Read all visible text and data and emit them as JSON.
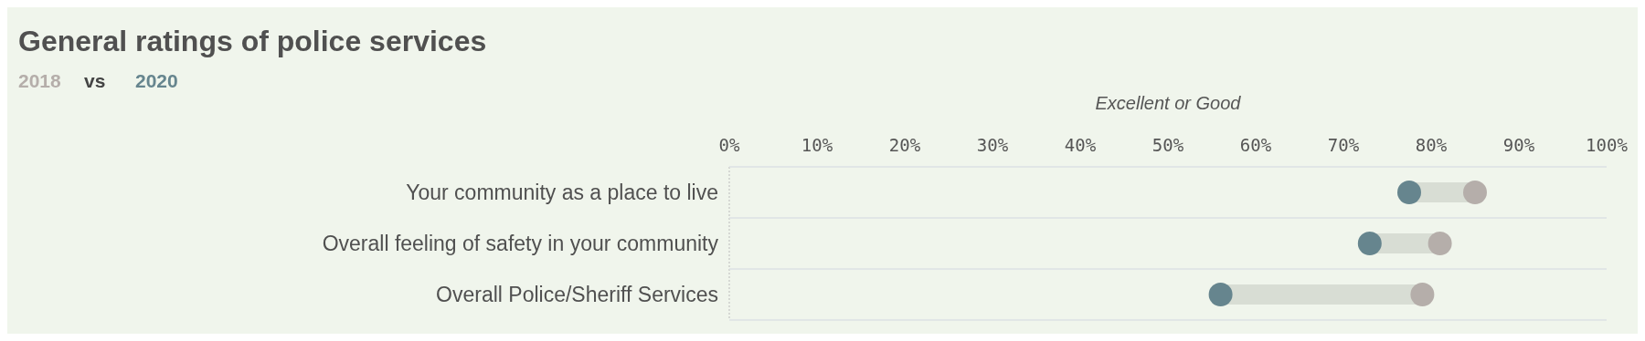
{
  "chart_data": {
    "type": "scatter",
    "orientation": "horizontal",
    "title": "General ratings of police services",
    "subtitle": "vs",
    "xlabel": "Excellent or Good",
    "categories": [
      "Your community as a place to live",
      "Overall feeling of safety in your community",
      "Overall Police/Sheriff Services"
    ],
    "series": [
      {
        "name": "2018",
        "color": "#b5aeaa",
        "values": [
          85,
          81,
          79
        ]
      },
      {
        "name": "2020",
        "color": "#66858e",
        "values": [
          77.5,
          73,
          56
        ]
      }
    ],
    "xlim": [
      0,
      100
    ],
    "xticks": [
      {
        "value": 0,
        "label": "0%"
      },
      {
        "value": 10,
        "label": "10%"
      },
      {
        "value": 20,
        "label": "20%"
      },
      {
        "value": 30,
        "label": "30%"
      },
      {
        "value": 40,
        "label": "40%"
      },
      {
        "value": 50,
        "label": "50%"
      },
      {
        "value": 60,
        "label": "60%"
      },
      {
        "value": 70,
        "label": "70%"
      },
      {
        "value": 80,
        "label": "80%"
      },
      {
        "value": 90,
        "label": "90%"
      },
      {
        "value": 100,
        "label": "100%"
      }
    ],
    "marker": "circle",
    "legend": "top left",
    "grid": false
  }
}
